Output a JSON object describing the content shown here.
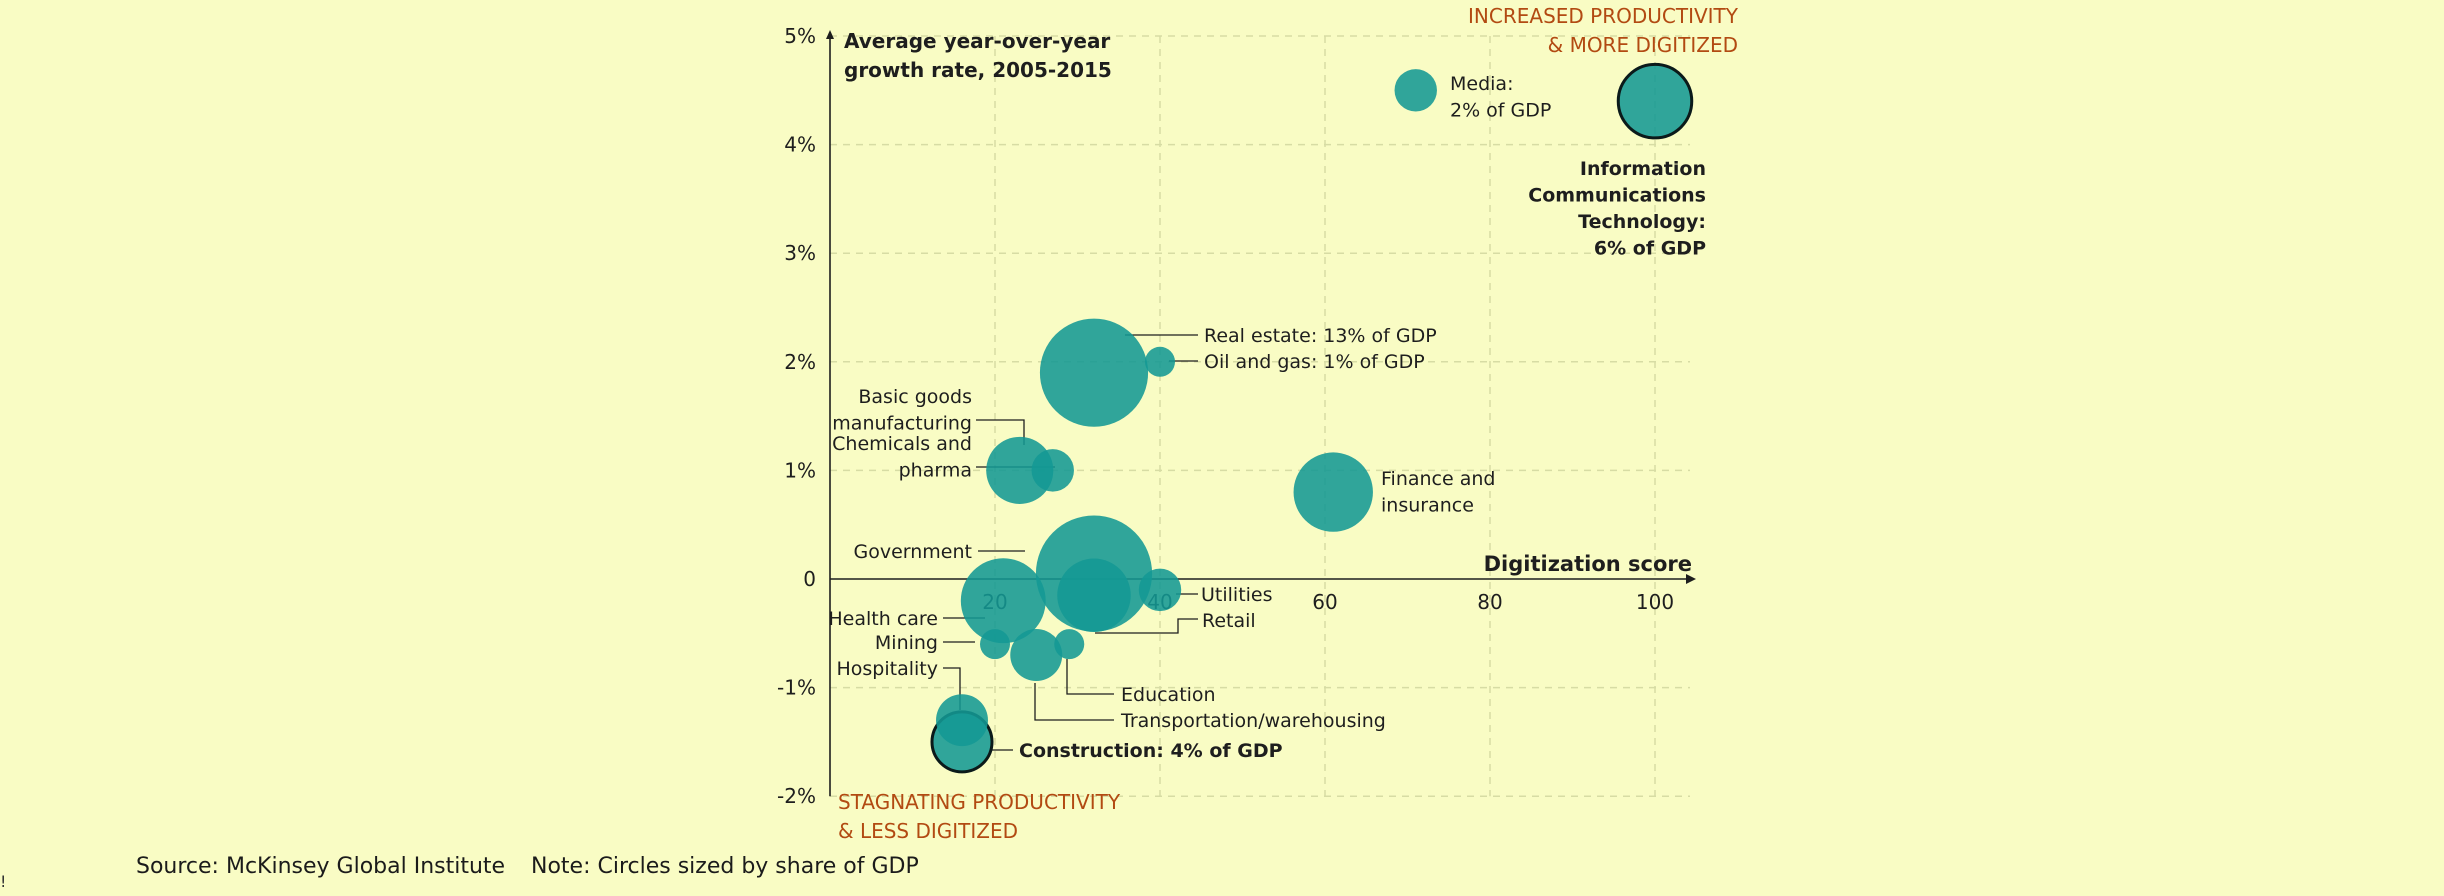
{
  "chart_data": {
    "type": "scatter",
    "title": "",
    "ylabel": "Average year-over-year growth rate, 2005-2015",
    "xlabel": "Digitization score",
    "xlim": [
      0,
      105
    ],
    "ylim": [
      -2,
      5
    ],
    "x_ticks": [
      20,
      40,
      60,
      80,
      100
    ],
    "x_tick_labels": [
      "20",
      "40",
      "60",
      "80",
      "100"
    ],
    "y_ticks": [
      5,
      4,
      3,
      2,
      1,
      0,
      -1,
      -2
    ],
    "y_tick_labels": [
      "5%",
      "4%",
      "3%",
      "2%",
      "1%",
      "0",
      "-1%",
      "-2%"
    ],
    "grid": true,
    "bubble_color": "#139894",
    "highlight_stroke": "#0b1a1a",
    "annotation_color": "#b24a12",
    "corner_annotations": {
      "top_right": [
        "INCREASED PRODUCTIVITY",
        "& MORE DIGITIZED"
      ],
      "bottom_left": [
        "STAGNATING PRODUCTIVITY",
        "& LESS DIGITIZED"
      ]
    },
    "points": [
      {
        "label_lines": [
          "Media:",
          "2% of GDP"
        ],
        "x": 71,
        "y": 4.5,
        "gdp_share": 2
      },
      {
        "label_lines": [
          "Information",
          "Communications",
          "Technology:",
          "6% of GDP"
        ],
        "x": 100,
        "y": 4.4,
        "gdp_share": 6,
        "highlight": true
      },
      {
        "label_lines": [
          "Real estate: 13% of GDP"
        ],
        "x": 32,
        "y": 1.9,
        "gdp_share": 13
      },
      {
        "label_lines": [
          "Oil and gas: 1% of GDP"
        ],
        "x": 40,
        "y": 2.0,
        "gdp_share": 1
      },
      {
        "label_lines": [
          "Basic goods",
          "manufacturing"
        ],
        "x": 23,
        "y": 1.0,
        "gdp_share": 5
      },
      {
        "label_lines": [
          "Chemicals and",
          "pharma"
        ],
        "x": 27,
        "y": 1.0,
        "gdp_share": 2
      },
      {
        "label_lines": [
          "Finance and",
          "insurance"
        ],
        "x": 61,
        "y": 0.8,
        "gdp_share": 7
      },
      {
        "label_lines": [
          "Government"
        ],
        "x": 32,
        "y": 0.05,
        "gdp_share": 15
      },
      {
        "label_lines": [
          "Utilities"
        ],
        "x": 40,
        "y": -0.1,
        "gdp_share": 2
      },
      {
        "label_lines": [
          "Retail"
        ],
        "x": 32,
        "y": -0.15,
        "gdp_share": 6
      },
      {
        "label_lines": [
          "Health care"
        ],
        "x": 21,
        "y": -0.2,
        "gdp_share": 8
      },
      {
        "label_lines": [
          "Mining"
        ],
        "x": 20,
        "y": -0.6,
        "gdp_share": 1
      },
      {
        "label_lines": [
          "Education"
        ],
        "x": 29,
        "y": -0.6,
        "gdp_share": 1
      },
      {
        "label_lines": [
          "Transportation/warehousing"
        ],
        "x": 25,
        "y": -0.7,
        "gdp_share": 3
      },
      {
        "label_lines": [
          "Hospitality"
        ],
        "x": 16,
        "y": -1.3,
        "gdp_share": 3
      },
      {
        "label_lines": [
          "Construction: 4% of GDP"
        ],
        "x": 16,
        "y": -1.5,
        "gdp_share": 4,
        "highlight": true
      }
    ]
  },
  "footer": {
    "source": "Source: McKinsey Global Institute",
    "note": "Note: Circles sized by share of GDP"
  },
  "edge_mark": "!"
}
